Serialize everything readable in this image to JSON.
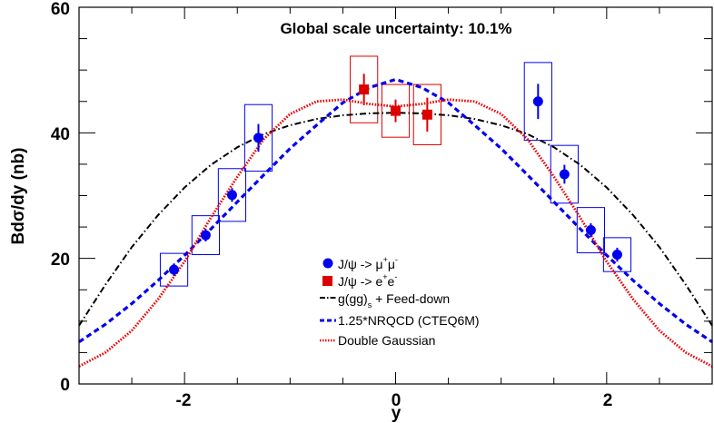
{
  "chart_data": {
    "type": "scatter",
    "title": "Global scale uncertainty: 10.1%",
    "xlabel": "y",
    "ylabel": "Bdσ/dy (nb)",
    "xlim": [
      -3.0,
      3.0
    ],
    "ylim": [
      0,
      60
    ],
    "x_ticks": [
      -2,
      0,
      2
    ],
    "y_ticks": [
      0,
      20,
      40,
      60
    ],
    "x_tick_labels": [
      "-2",
      "0",
      "2"
    ],
    "y_tick_labels": [
      "0",
      "20",
      "40",
      "60"
    ],
    "grid": false,
    "legend_position": "bottom-center",
    "colors": {
      "muon": "#0000ee",
      "electron": "#dd0000",
      "gluon": "#000000",
      "nrqcd": "#0000ee",
      "gauss": "#ee0000"
    },
    "points": [
      {
        "name": "muon",
        "legend_base": "J/ψ -> μ",
        "legend_sup1": "+",
        "legend_mid": "μ",
        "legend_sup2": "-",
        "marker": "circle",
        "x": [
          -2.1,
          -1.8,
          -1.55,
          -1.3,
          1.35,
          1.6,
          1.85,
          2.1
        ],
        "y": [
          18.2,
          23.7,
          30.1,
          39.2,
          45.0,
          33.4,
          24.5,
          20.6
        ],
        "yerr": [
          1.0,
          1.0,
          1.1,
          2.2,
          2.8,
          1.5,
          1.1,
          1.1
        ],
        "box_dx": [
          0.13,
          0.13,
          0.13,
          0.13,
          0.13,
          0.13,
          0.13,
          0.13
        ],
        "box_dy": [
          2.6,
          3.1,
          4.2,
          5.3,
          6.2,
          4.6,
          3.6,
          2.7
        ]
      },
      {
        "name": "electron",
        "legend_base": "J/ψ -> e",
        "legend_sup1": "+",
        "legend_mid": "e",
        "legend_sup2": "-",
        "marker": "square",
        "x": [
          -0.3,
          0.0,
          0.3
        ],
        "y": [
          46.9,
          43.5,
          42.9
        ],
        "yerr": [
          2.5,
          1.8,
          2.7
        ],
        "box_dx": [
          0.13,
          0.13,
          0.13
        ],
        "box_dy": [
          5.3,
          4.2,
          4.8
        ]
      }
    ],
    "series": [
      {
        "name": "gluon",
        "legend_base": "g(gg)",
        "legend_sub": "s",
        "legend_rest": " + Feed-down",
        "style": "dashdot",
        "x": [
          -3.0,
          -2.75,
          -2.5,
          -2.25,
          -2.0,
          -1.75,
          -1.5,
          -1.25,
          -1.0,
          -0.75,
          -0.5,
          -0.25,
          0.0,
          0.25,
          0.5,
          0.75,
          1.0,
          1.25,
          1.5,
          1.75,
          2.0,
          2.25,
          2.5,
          2.75,
          3.0
        ],
        "y": [
          9.3,
          15.8,
          21.8,
          26.9,
          31.3,
          34.9,
          37.7,
          39.8,
          41.2,
          42.2,
          42.8,
          43.1,
          43.2,
          43.1,
          42.8,
          42.2,
          41.2,
          39.8,
          37.7,
          34.9,
          31.3,
          26.9,
          21.8,
          15.8,
          9.3
        ]
      },
      {
        "name": "nrqcd",
        "legend_text": "1.25*NRQCD (CTEQ6M)",
        "style": "dashed",
        "x": [
          -3.0,
          -2.75,
          -2.5,
          -2.25,
          -2.0,
          -1.75,
          -1.5,
          -1.25,
          -1.0,
          -0.75,
          -0.5,
          -0.25,
          0.0,
          0.25,
          0.5,
          0.75,
          1.0,
          1.25,
          1.5,
          1.75,
          2.0,
          2.25,
          2.5,
          2.75,
          3.0
        ],
        "y": [
          6.7,
          9.5,
          12.8,
          16.5,
          20.5,
          24.7,
          29.0,
          33.3,
          37.5,
          41.2,
          44.8,
          47.2,
          48.5,
          47.2,
          44.8,
          41.2,
          37.5,
          33.3,
          29.0,
          24.7,
          20.5,
          16.5,
          12.8,
          9.5,
          6.7
        ]
      },
      {
        "name": "gauss",
        "legend_text": "Double Gaussian",
        "style": "dotted",
        "x": [
          -3.0,
          -2.75,
          -2.5,
          -2.25,
          -2.0,
          -1.75,
          -1.5,
          -1.25,
          -1.0,
          -0.75,
          -0.5,
          -0.25,
          0.0,
          0.25,
          0.5,
          0.75,
          1.0,
          1.25,
          1.5,
          1.75,
          2.0,
          2.25,
          2.5,
          2.75,
          3.0
        ],
        "y": [
          2.8,
          5.0,
          8.5,
          13.5,
          19.5,
          26.5,
          33.0,
          39.0,
          43.0,
          45.0,
          45.3,
          44.6,
          44.2,
          44.6,
          45.3,
          45.0,
          43.0,
          39.0,
          33.0,
          26.5,
          19.5,
          13.5,
          8.5,
          5.0,
          2.8
        ]
      }
    ]
  }
}
